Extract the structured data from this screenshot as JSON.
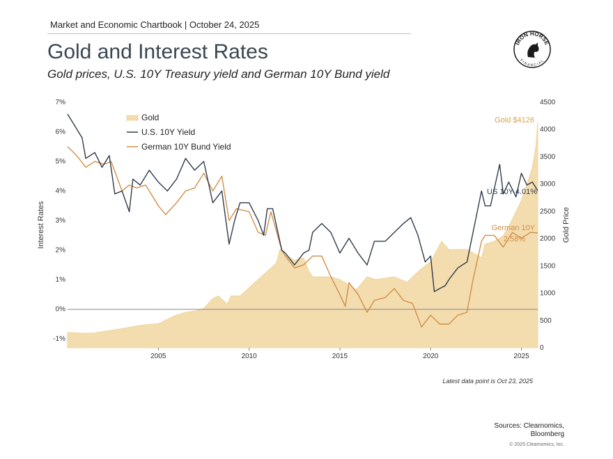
{
  "header": {
    "text": "Market and Economic Chartbook | October 24, 2025",
    "title": "Gold and Interest Rates",
    "subtitle": "Gold prices, U.S. 10Y Treasury yield and German 10Y Bund yield"
  },
  "logo": {
    "top": "IRON HORSE",
    "bottom": "FINANCIAL"
  },
  "footer": {
    "note": "Latest data point is Oct 23, 2025",
    "sources_line1": "Sources: Clearnomics,",
    "sources_line2": "Bloomberg",
    "copyright": "© 2025 Clearnomics, Inc."
  },
  "colors": {
    "gold_fill": "#f3dcae",
    "gold_line": "#f0d59c",
    "us_yield": "#2e3a48",
    "bund_yield": "#d18f47",
    "zero_line": "#8a8a8a"
  },
  "chart_data": {
    "type": "line",
    "title": "Gold and Interest Rates",
    "ylabel_left": "Interest Rates",
    "ylabel_right": "Gold Price",
    "y_left_ticks": [
      "-1%",
      "0%",
      "1%",
      "2%",
      "3%",
      "4%",
      "5%",
      "6%",
      "7%"
    ],
    "y_left_values": [
      -1,
      0,
      1,
      2,
      3,
      4,
      5,
      6,
      7
    ],
    "y_right_ticks": [
      "0",
      "500",
      "1000",
      "1500",
      "2000",
      "2500",
      "3000",
      "3500",
      "4000",
      "4500"
    ],
    "y_right_values": [
      0,
      500,
      1000,
      1500,
      2000,
      2500,
      3000,
      3500,
      4000,
      4500
    ],
    "x_ticks": [
      "2005",
      "2010",
      "2015",
      "2020",
      "2025"
    ],
    "x_tick_values": [
      2005,
      2010,
      2015,
      2020,
      2025
    ],
    "xlim": [
      2000.0,
      2025.9
    ],
    "ylim_left": [
      -1.3,
      7.0
    ],
    "ylim_right": [
      0,
      4500
    ],
    "legend": {
      "placement": "top-left",
      "entries": [
        "Gold",
        "U.S. 10Y Yield",
        "German 10Y Bund Yield"
      ]
    },
    "end_labels": {
      "gold": "Gold $4126",
      "us": "US 10Y 4.01%",
      "bund_line1": "German 10Y",
      "bund_line2": "2.58%"
    },
    "series": [
      {
        "name": "Gold",
        "axis": "right",
        "type": "area",
        "x": [
          2000.0,
          2001.0,
          2001.5,
          2002.0,
          2003.0,
          2004.0,
          2005.0,
          2006.0,
          2006.5,
          2007.0,
          2007.5,
          2008.0,
          2008.3,
          2008.8,
          2009.0,
          2009.5,
          2010.0,
          2010.5,
          2011.0,
          2011.5,
          2011.7,
          2012.0,
          2012.5,
          2013.0,
          2013.3,
          2013.5,
          2014.0,
          2014.5,
          2015.0,
          2015.5,
          2015.9,
          2016.5,
          2017.0,
          2018.0,
          2018.7,
          2019.0,
          2019.5,
          2020.0,
          2020.6,
          2021.0,
          2021.5,
          2022.0,
          2022.8,
          2023.0,
          2023.5,
          2024.0,
          2024.5,
          2025.0,
          2025.3,
          2025.6,
          2025.8,
          2025.9
        ],
        "values": [
          280,
          265,
          270,
          300,
          350,
          410,
          440,
          600,
          650,
          670,
          720,
          900,
          950,
          800,
          950,
          950,
          1100,
          1250,
          1400,
          1550,
          1800,
          1700,
          1600,
          1650,
          1400,
          1300,
          1300,
          1300,
          1250,
          1150,
          1060,
          1300,
          1250,
          1300,
          1200,
          1300,
          1450,
          1580,
          1950,
          1800,
          1800,
          1800,
          1650,
          1900,
          1950,
          2050,
          2350,
          2700,
          3000,
          3300,
          3700,
          4126
        ]
      },
      {
        "name": "U.S. 10Y Yield",
        "axis": "left",
        "x": [
          2000.0,
          2000.3,
          2000.8,
          2001.0,
          2001.5,
          2001.9,
          2002.3,
          2002.6,
          2003.0,
          2003.4,
          2003.6,
          2004.0,
          2004.5,
          2005.0,
          2005.5,
          2006.0,
          2006.5,
          2007.0,
          2007.5,
          2008.0,
          2008.5,
          2008.9,
          2009.2,
          2009.5,
          2010.0,
          2010.5,
          2010.8,
          2011.0,
          2011.3,
          2011.8,
          2012.0,
          2012.5,
          2013.0,
          2013.3,
          2013.5,
          2014.0,
          2014.5,
          2015.0,
          2015.5,
          2016.0,
          2016.5,
          2016.9,
          2017.5,
          2018.0,
          2018.5,
          2018.9,
          2019.3,
          2019.7,
          2020.0,
          2020.2,
          2020.5,
          2020.8,
          2021.0,
          2021.5,
          2022.0,
          2022.4,
          2022.8,
          2023.0,
          2023.3,
          2023.8,
          2024.0,
          2024.3,
          2024.7,
          2025.0,
          2025.3,
          2025.6,
          2025.9
        ],
        "values": [
          6.6,
          6.3,
          5.8,
          5.1,
          5.3,
          4.8,
          5.2,
          3.9,
          4.0,
          3.3,
          4.4,
          4.2,
          4.7,
          4.3,
          4.0,
          4.4,
          5.1,
          4.7,
          5.0,
          3.6,
          4.0,
          2.2,
          3.0,
          3.6,
          3.6,
          3.0,
          2.5,
          3.4,
          3.4,
          2.0,
          1.9,
          1.5,
          1.9,
          2.0,
          2.6,
          2.9,
          2.6,
          1.9,
          2.4,
          1.9,
          1.5,
          2.3,
          2.3,
          2.6,
          2.9,
          3.1,
          2.5,
          1.6,
          1.8,
          0.6,
          0.7,
          0.8,
          1.0,
          1.4,
          1.6,
          2.8,
          4.0,
          3.5,
          3.5,
          4.9,
          3.9,
          4.3,
          3.8,
          4.6,
          4.2,
          4.3,
          4.01
        ]
      },
      {
        "name": "German 10Y Bund Yield",
        "axis": "left",
        "x": [
          2000.0,
          2000.5,
          2001.0,
          2001.5,
          2002.0,
          2002.4,
          2003.0,
          2003.4,
          2003.8,
          2004.3,
          2005.0,
          2005.4,
          2006.0,
          2006.5,
          2007.0,
          2007.5,
          2008.0,
          2008.5,
          2008.9,
          2009.3,
          2010.0,
          2010.5,
          2010.9,
          2011.2,
          2011.8,
          2012.0,
          2012.5,
          2013.0,
          2013.5,
          2014.0,
          2014.5,
          2015.0,
          2015.3,
          2015.5,
          2016.0,
          2016.5,
          2016.9,
          2017.5,
          2018.0,
          2018.5,
          2019.0,
          2019.5,
          2020.0,
          2020.5,
          2021.0,
          2021.5,
          2022.0,
          2022.3,
          2022.8,
          2023.0,
          2023.5,
          2024.0,
          2024.5,
          2025.0,
          2025.5,
          2025.9
        ],
        "values": [
          5.5,
          5.2,
          4.8,
          5.0,
          4.9,
          5.0,
          4.0,
          4.2,
          4.1,
          4.2,
          3.5,
          3.2,
          3.6,
          4.0,
          4.1,
          4.6,
          4.0,
          4.5,
          3.0,
          3.4,
          3.3,
          2.6,
          2.5,
          3.3,
          2.0,
          1.8,
          1.4,
          1.5,
          1.8,
          1.8,
          1.1,
          0.5,
          0.1,
          0.9,
          0.5,
          -0.1,
          0.3,
          0.4,
          0.7,
          0.3,
          0.2,
          -0.6,
          -0.2,
          -0.5,
          -0.5,
          -0.2,
          -0.1,
          0.9,
          2.3,
          2.5,
          2.5,
          2.1,
          2.6,
          2.4,
          2.6,
          2.58
        ]
      }
    ]
  }
}
